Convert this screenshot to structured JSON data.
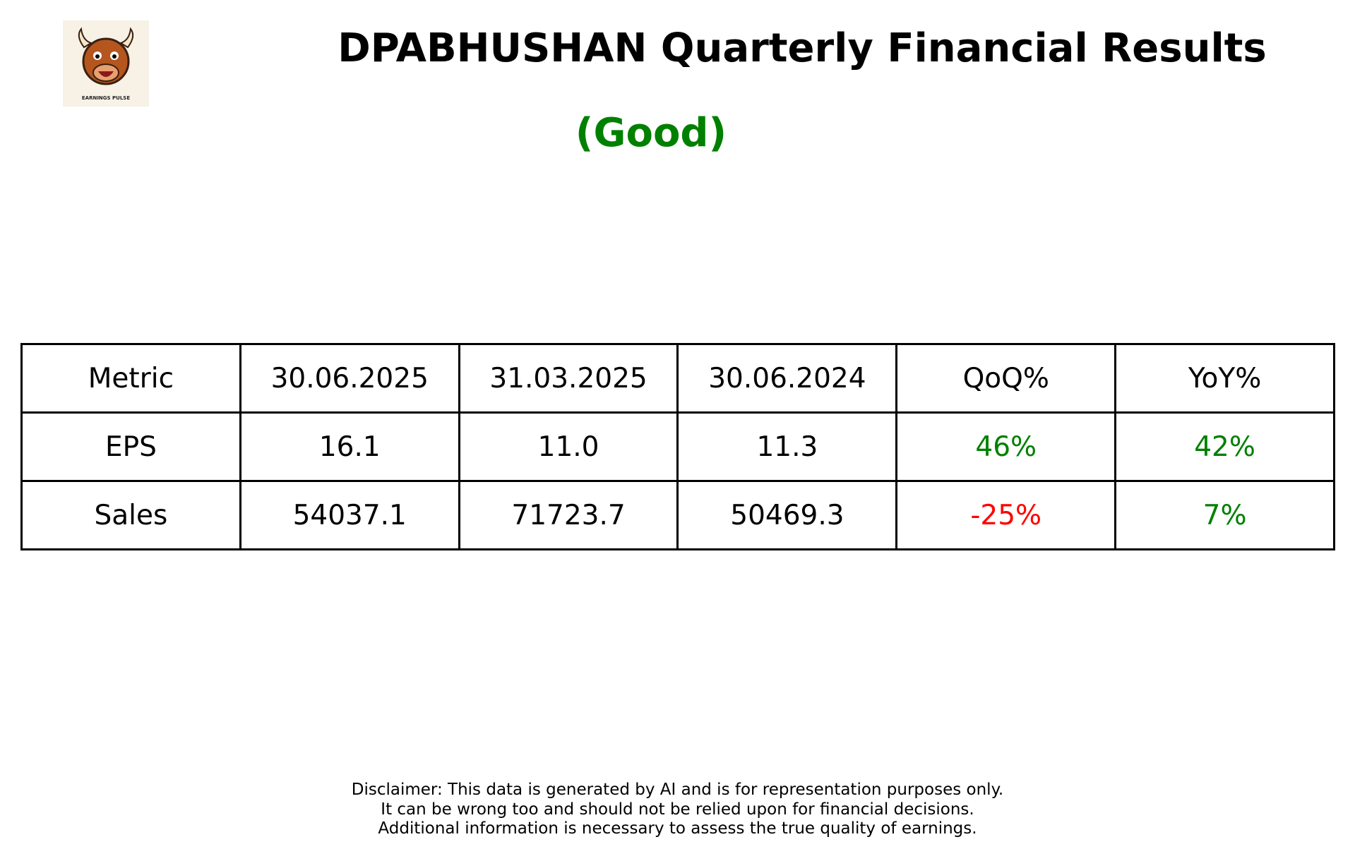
{
  "header": {
    "title": "DPABHUSHAN Quarterly Financial Results",
    "rating": "(Good)",
    "logo_text": "EARNINGS PULSE"
  },
  "table": {
    "columns": [
      "Metric",
      "30.06.2025",
      "31.03.2025",
      "30.06.2024",
      "QoQ%",
      "YoY%"
    ],
    "rows": [
      [
        "EPS",
        "16.1",
        "11.0",
        "11.3",
        "46%",
        "42%"
      ],
      [
        "Sales",
        "54037.1",
        "71723.7",
        "50469.3",
        "-25%",
        "7%"
      ]
    ]
  },
  "disclaimer": [
    "Disclaimer: This data is generated by AI and is for representation purposes only.",
    "It can be wrong too and should not be relied upon for financial decisions.",
    "Additional information is necessary to assess the true quality of earnings."
  ]
}
